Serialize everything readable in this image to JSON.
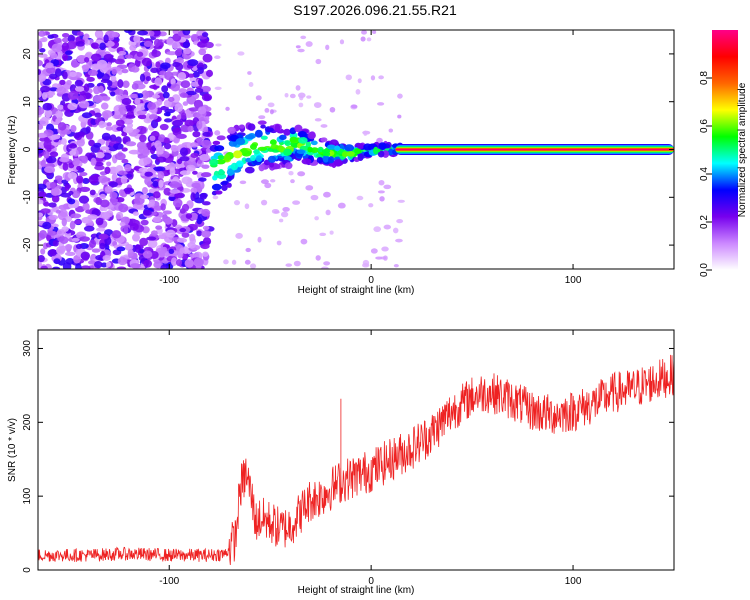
{
  "title": "S197.2026.096.21.55.R21",
  "colors": {
    "snr_line": "#ee2222",
    "axis": "#000000"
  },
  "chart_data": [
    {
      "type": "heatmap",
      "name": "spectrogram",
      "xlabel": "Height of straight line (km)",
      "ylabel": "Frequency (Hz)",
      "xlim": [
        -165,
        150
      ],
      "ylim": [
        -25,
        25
      ],
      "x_ticks": [
        -100,
        0,
        100
      ],
      "y_ticks": [
        -20,
        -10,
        0,
        10,
        20
      ],
      "colorbar": {
        "label": "Normalized spectral amplitude",
        "range": [
          0.0,
          1.0
        ],
        "ticks": [
          0.0,
          0.2,
          0.4,
          0.6,
          0.8
        ],
        "tick_labels": [
          "0.0",
          "0.2",
          "0.4",
          "0.6",
          "0.8"
        ],
        "stops": [
          "#ffffff",
          "#cc88ff",
          "#7700ee",
          "#0000ff",
          "#00ffff",
          "#00ff00",
          "#ffff00",
          "#ff6600",
          "#ff0000",
          "#ff0088"
        ]
      },
      "regions": [
        {
          "name": "noise",
          "x_range": [
            -165,
            -80
          ],
          "freq_range": [
            -25,
            25
          ],
          "amplitude": 0.1
        },
        {
          "name": "signal-onset",
          "x_range": [
            -78,
            15
          ],
          "freq_range": [
            -10,
            10
          ],
          "amplitude": 0.4
        },
        {
          "name": "carrier",
          "x_range": [
            12,
            150
          ],
          "freq": 0,
          "amplitude": 0.95
        }
      ]
    },
    {
      "type": "line",
      "name": "snr",
      "xlabel": "Height of straight line (km)",
      "ylabel": "SNR (10 * v/v)",
      "xlim": [
        -165,
        150
      ],
      "ylim": [
        0,
        325
      ],
      "x_ticks": [
        -100,
        0,
        100
      ],
      "y_ticks": [
        0,
        100,
        200,
        300
      ],
      "series": [
        {
          "name": "SNR envelope",
          "x": [
            -165,
            -140,
            -120,
            -100,
            -80,
            -72,
            -67,
            -65,
            -62,
            -60,
            -57,
            -55,
            -50,
            -45,
            -40,
            -35,
            -30,
            -25,
            -20,
            -15,
            -10,
            0,
            10,
            20,
            30,
            40,
            50,
            55,
            60,
            70,
            80,
            90,
            100,
            110,
            120,
            130,
            140,
            150
          ],
          "values": [
            20,
            20,
            22,
            20,
            20,
            22,
            45,
            110,
            130,
            110,
            65,
            70,
            65,
            55,
            60,
            78,
            95,
            100,
            110,
            120,
            125,
            135,
            150,
            165,
            185,
            215,
            235,
            240,
            240,
            230,
            215,
            210,
            215,
            225,
            240,
            245,
            255,
            265
          ]
        }
      ],
      "annotations": [
        {
          "name": "spike",
          "x": -15,
          "value": 232
        }
      ]
    }
  ]
}
